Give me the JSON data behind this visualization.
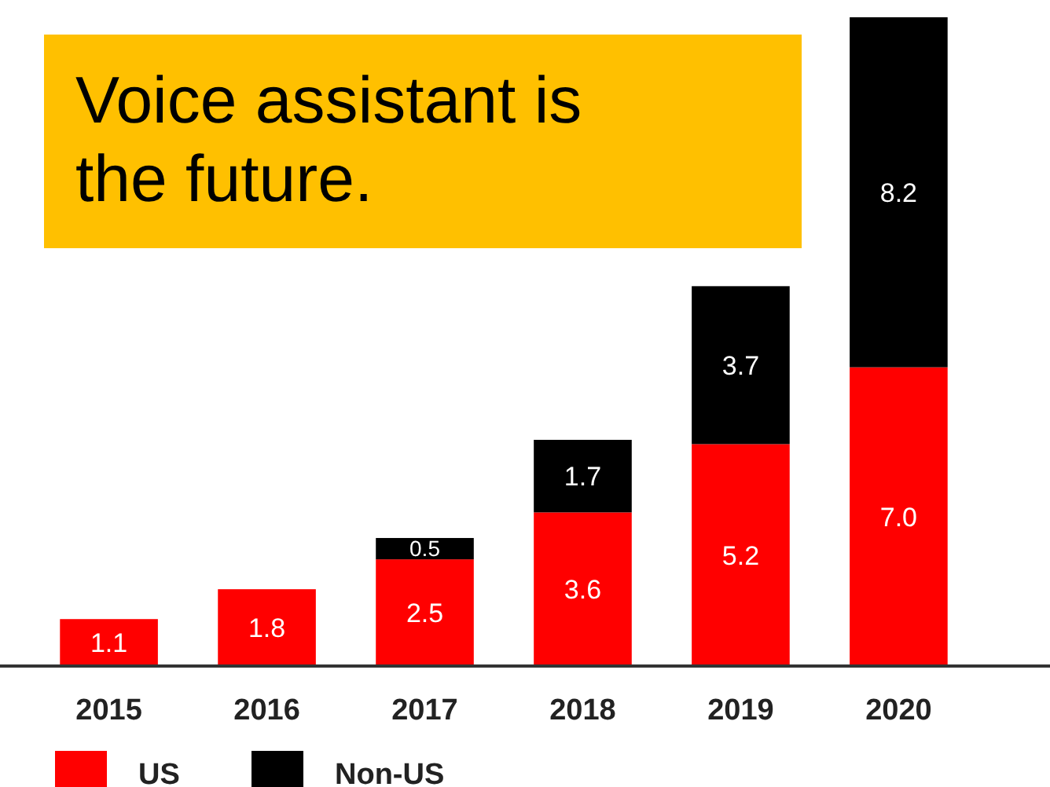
{
  "chart_data": {
    "type": "bar",
    "title": "Voice assistant is the future.",
    "categories": [
      "2015",
      "2016",
      "2017",
      "2018",
      "2019",
      "2020"
    ],
    "stacked": true,
    "legend": "bottom left",
    "series": [
      {
        "name": "US",
        "color": "#ff0000",
        "values": [
          1.1,
          1.8,
          2.5,
          3.6,
          5.2,
          7.0
        ],
        "value_labels": [
          "1.1",
          "1.8",
          "2.5",
          "3.6",
          "5.2",
          "7.0"
        ]
      },
      {
        "name": "Non-US",
        "color": "#000000",
        "values": [
          null,
          null,
          0.5,
          1.7,
          3.7,
          8.2
        ],
        "value_labels": [
          null,
          null,
          "0.5",
          "1.7",
          "3.7",
          "8.2"
        ]
      }
    ]
  }
}
